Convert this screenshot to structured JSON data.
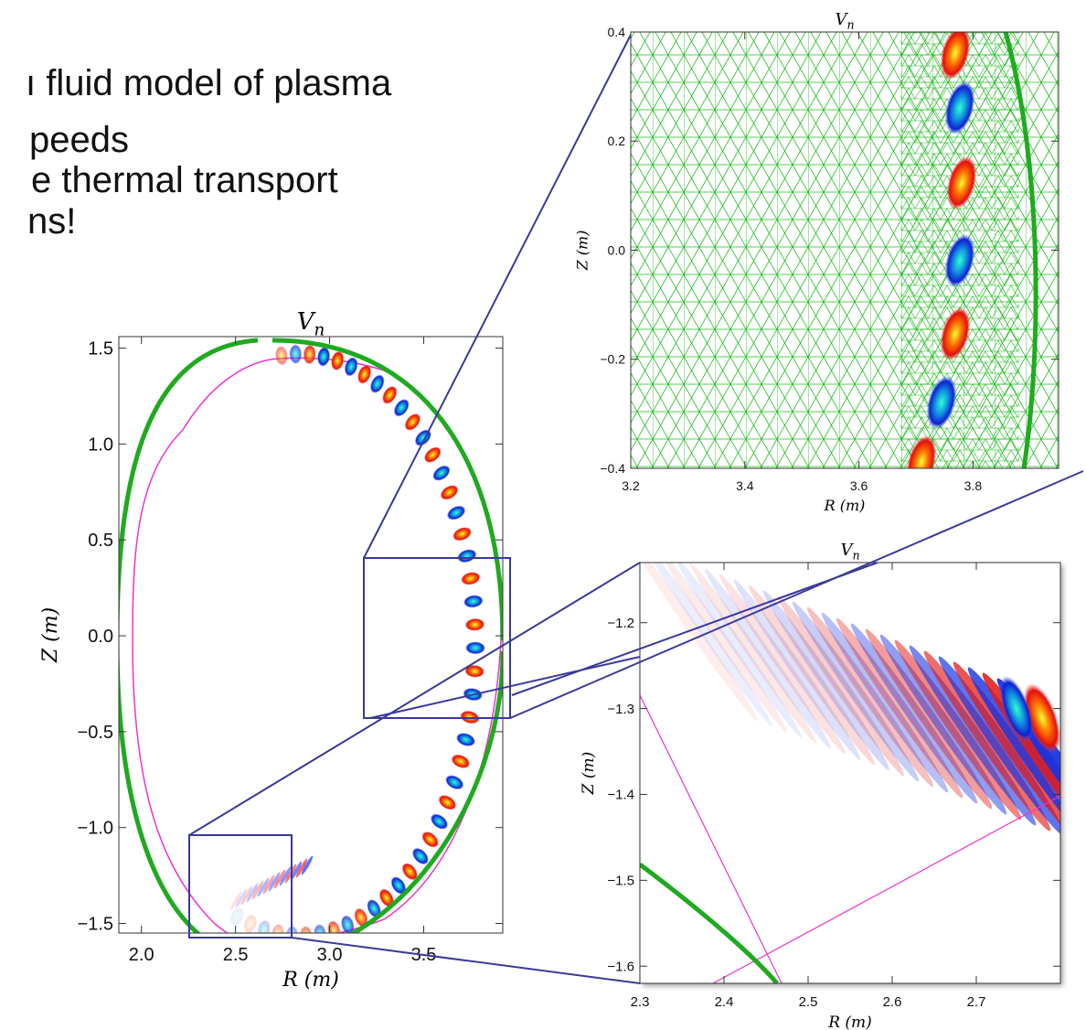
{
  "slide": {
    "lines": [
      "ı fluid model of plasma",
      "peeds",
      "e thermal transport",
      "ns!"
    ]
  },
  "chart_data": [
    {
      "type": "contour",
      "title": [
        "V",
        "n"
      ],
      "xlabel": "R (m)",
      "ylabel": "Z (m)",
      "xlim": [
        1.88,
        3.92
      ],
      "ylim": [
        -1.55,
        1.56
      ],
      "xticks": [
        {
          "value": 2,
          "label": "2.0"
        },
        {
          "value": 2.5,
          "label": "2.5"
        },
        {
          "value": 3,
          "label": "3.0"
        },
        {
          "value": 3.5,
          "label": "3.5"
        }
      ],
      "yticks": [
        {
          "value": 1.5,
          "label": "1.5"
        },
        {
          "value": 1,
          "label": "1.0"
        },
        {
          "value": 0.5,
          "label": "0.5"
        },
        {
          "value": 0,
          "label": "0.0"
        },
        {
          "value": -0.5,
          "label": "−0.5"
        },
        {
          "value": -1,
          "label": "−1.0"
        },
        {
          "value": -1.5,
          "label": "−1.5"
        }
      ]
    },
    {
      "type": "mesh",
      "title": [
        "V",
        "n"
      ],
      "xlabel": "R (m)",
      "ylabel": "Z (m)",
      "xlim": [
        3.2,
        3.95
      ],
      "ylim": [
        -0.4,
        0.4
      ],
      "xticks": [
        {
          "value": 3.2,
          "label": "3.2"
        },
        {
          "value": 3.4,
          "label": "3.4"
        },
        {
          "value": 3.6,
          "label": "3.6"
        },
        {
          "value": 3.8,
          "label": "3.8"
        }
      ],
      "yticks": [
        {
          "value": 0.4,
          "label": "0.4"
        },
        {
          "value": 0.2,
          "label": "0.2"
        },
        {
          "value": 0,
          "label": "0.0"
        },
        {
          "value": -0.2,
          "label": "−0.2"
        },
        {
          "value": -0.4,
          "label": "−0.4"
        }
      ]
    },
    {
      "type": "zoom",
      "title": [
        "V",
        "n"
      ],
      "xlabel": "R (m)",
      "ylabel": "Z (m)",
      "xlim": [
        2.3,
        2.8
      ],
      "ylim": [
        -1.62,
        -1.13
      ],
      "xticks": [
        2.3,
        2.4,
        2.5,
        2.6,
        2.7
      ],
      "yticks": [
        {
          "value": -1.2,
          "label": "−1.2"
        },
        {
          "value": -1.3,
          "label": "−1.3"
        },
        {
          "value": -1.4,
          "label": "−1.4"
        },
        {
          "value": -1.5,
          "label": "−1.5"
        },
        {
          "value": -1.6,
          "label": "−1.6"
        }
      ]
    }
  ]
}
